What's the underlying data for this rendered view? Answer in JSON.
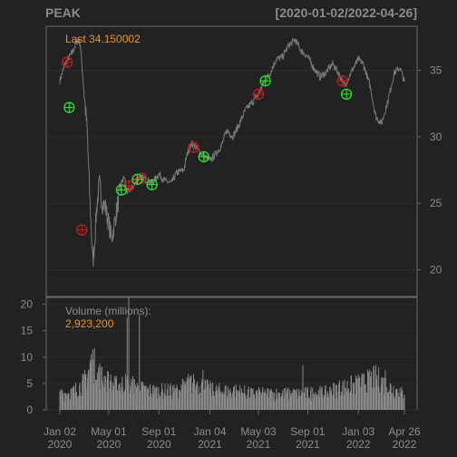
{
  "colors": {
    "background": "#222222",
    "panel_border": "#6a6a6a",
    "grid": "#2e2e2e",
    "price_line": "#7a7a7a",
    "volume_bar": "#8a8a8a",
    "accent": "#f0921e",
    "text": "#8c8c8c",
    "sell_marker": "#c21e1e",
    "buy_marker": "#2ee02e"
  },
  "chart_data": {
    "type": "line",
    "title": "PEAK",
    "date_range": "[2020-01-02/2022-04-26]",
    "last_label": "Last 34.150002",
    "price_axis": {
      "ticks": [
        20,
        25,
        30,
        35
      ],
      "ylim": [
        18.0,
        38.3
      ],
      "position": "right"
    },
    "date_axis": {
      "range": [
        "2020-01-02",
        "2022-04-26"
      ],
      "ticks": [
        {
          "date": "2020-01-02",
          "line1": "Jan 02",
          "line2": "2020"
        },
        {
          "date": "2020-05-01",
          "line1": "May 01",
          "line2": "2020"
        },
        {
          "date": "2020-09-01",
          "line1": "Sep 01",
          "line2": "2020"
        },
        {
          "date": "2021-01-04",
          "line1": "Jan 04",
          "line2": "2021"
        },
        {
          "date": "2021-05-03",
          "line1": "May 03",
          "line2": "2021"
        },
        {
          "date": "2021-09-01",
          "line1": "Sep 01",
          "line2": "2021"
        },
        {
          "date": "2022-01-03",
          "line1": "Jan 03",
          "line2": "2022"
        },
        {
          "date": "2022-04-26",
          "line1": "Apr 26",
          "line2": "2022"
        }
      ]
    },
    "price_series": {
      "name": "PEAK",
      "points": [
        [
          "2020-01-02",
          34.2
        ],
        [
          "2020-01-15",
          35.5
        ],
        [
          "2020-02-01",
          36.3
        ],
        [
          "2020-02-15",
          37.3
        ],
        [
          "2020-02-21",
          37.0
        ],
        [
          "2020-03-01",
          33.5
        ],
        [
          "2020-03-09",
          30.5
        ],
        [
          "2020-03-16",
          25.0
        ],
        [
          "2020-03-23",
          20.5
        ],
        [
          "2020-03-27",
          22.0
        ],
        [
          "2020-04-01",
          24.5
        ],
        [
          "2020-04-08",
          26.5
        ],
        [
          "2020-04-15",
          25.0
        ],
        [
          "2020-04-22",
          24.8
        ],
        [
          "2020-05-01",
          23.5
        ],
        [
          "2020-05-08",
          22.3
        ],
        [
          "2020-05-15",
          23.5
        ],
        [
          "2020-06-01",
          26.5
        ],
        [
          "2020-06-08",
          27.0
        ],
        [
          "2020-06-15",
          25.8
        ],
        [
          "2020-07-01",
          26.3
        ],
        [
          "2020-07-15",
          27.0
        ],
        [
          "2020-08-01",
          26.8
        ],
        [
          "2020-08-15",
          26.5
        ],
        [
          "2020-09-01",
          27.2
        ],
        [
          "2020-09-15",
          26.7
        ],
        [
          "2020-10-01",
          26.5
        ],
        [
          "2020-10-15",
          27.3
        ],
        [
          "2020-11-01",
          27.5
        ],
        [
          "2020-11-10",
          28.8
        ],
        [
          "2020-11-20",
          29.5
        ],
        [
          "2020-12-01",
          29.2
        ],
        [
          "2020-12-15",
          28.7
        ],
        [
          "2021-01-04",
          28.2
        ],
        [
          "2021-01-15",
          28.6
        ],
        [
          "2021-02-01",
          29.3
        ],
        [
          "2021-02-15",
          30.5
        ],
        [
          "2021-03-01",
          30.0
        ],
        [
          "2021-03-15",
          30.8
        ],
        [
          "2021-04-01",
          32.0
        ],
        [
          "2021-04-15",
          32.5
        ],
        [
          "2021-05-03",
          33.2
        ],
        [
          "2021-05-15",
          34.0
        ],
        [
          "2021-06-01",
          34.8
        ],
        [
          "2021-06-15",
          35.8
        ],
        [
          "2021-07-01",
          36.0
        ],
        [
          "2021-07-15",
          36.8
        ],
        [
          "2021-08-01",
          37.3
        ],
        [
          "2021-08-15",
          36.5
        ],
        [
          "2021-09-01",
          36.0
        ],
        [
          "2021-09-15",
          35.2
        ],
        [
          "2021-10-01",
          34.5
        ],
        [
          "2021-10-15",
          34.8
        ],
        [
          "2021-11-01",
          35.5
        ],
        [
          "2021-11-15",
          34.8
        ],
        [
          "2021-12-01",
          33.8
        ],
        [
          "2021-12-15",
          34.8
        ],
        [
          "2022-01-03",
          35.8
        ],
        [
          "2022-01-15",
          35.5
        ],
        [
          "2022-02-01",
          33.8
        ],
        [
          "2022-02-15",
          31.5
        ],
        [
          "2022-03-01",
          31.0
        ],
        [
          "2022-03-15",
          32.5
        ],
        [
          "2022-04-01",
          34.8
        ],
        [
          "2022-04-15",
          35.2
        ],
        [
          "2022-04-26",
          34.15
        ]
      ]
    },
    "sell_markers": [
      [
        "2020-01-20",
        35.6
      ],
      [
        "2020-02-25",
        23.0
      ],
      [
        "2020-06-20",
        26.3
      ],
      [
        "2020-07-20",
        26.9
      ],
      [
        "2020-11-25",
        29.2
      ],
      [
        "2021-05-03",
        33.2
      ],
      [
        "2021-11-25",
        34.2
      ]
    ],
    "buy_markers": [
      [
        "2020-01-25",
        32.2
      ],
      [
        "2020-06-01",
        26.0
      ],
      [
        "2020-07-10",
        26.8
      ],
      [
        "2020-08-15",
        26.4
      ],
      [
        "2020-12-20",
        28.5
      ],
      [
        "2021-05-20",
        34.2
      ],
      [
        "2021-12-05",
        33.2
      ]
    ],
    "volume": {
      "label": "Volume (millions):",
      "last_value": "2,923,200",
      "ticks": [
        0,
        5,
        10,
        15,
        20
      ],
      "ylim": [
        0,
        21.3
      ],
      "levels": [
        [
          "2020-01-02",
          3.0
        ],
        [
          "2020-02-01",
          3.2
        ],
        [
          "2020-03-01",
          5.0
        ],
        [
          "2020-03-20",
          9.0
        ],
        [
          "2020-04-15",
          6.0
        ],
        [
          "2020-05-15",
          4.5
        ],
        [
          "2020-06-15",
          5.0
        ],
        [
          "2020-07-15",
          4.0
        ],
        [
          "2020-08-15",
          3.5
        ],
        [
          "2020-09-15",
          3.5
        ],
        [
          "2020-10-15",
          3.5
        ],
        [
          "2020-11-15",
          5.0
        ],
        [
          "2020-12-15",
          4.5
        ],
        [
          "2021-01-15",
          3.5
        ],
        [
          "2021-02-15",
          3.5
        ],
        [
          "2021-03-15",
          3.5
        ],
        [
          "2021-04-15",
          3.0
        ],
        [
          "2021-05-15",
          3.0
        ],
        [
          "2021-06-15",
          3.0
        ],
        [
          "2021-07-15",
          3.0
        ],
        [
          "2021-08-15",
          3.0
        ],
        [
          "2021-09-15",
          3.2
        ],
        [
          "2021-10-15",
          3.2
        ],
        [
          "2021-11-15",
          4.0
        ],
        [
          "2021-12-15",
          4.5
        ],
        [
          "2022-01-15",
          5.0
        ],
        [
          "2022-02-15",
          6.0
        ],
        [
          "2022-03-15",
          4.5
        ],
        [
          "2022-04-26",
          2.9
        ]
      ],
      "spikes": [
        [
          "2020-03-20",
          9.5
        ],
        [
          "2020-06-15",
          17.5
        ],
        [
          "2020-06-19",
          21.5
        ],
        [
          "2020-07-15",
          18.0
        ],
        [
          "2020-12-18",
          7.5
        ],
        [
          "2021-08-20",
          8.5
        ],
        [
          "2022-02-20",
          8.0
        ],
        [
          "2022-03-10",
          7.5
        ]
      ]
    }
  }
}
